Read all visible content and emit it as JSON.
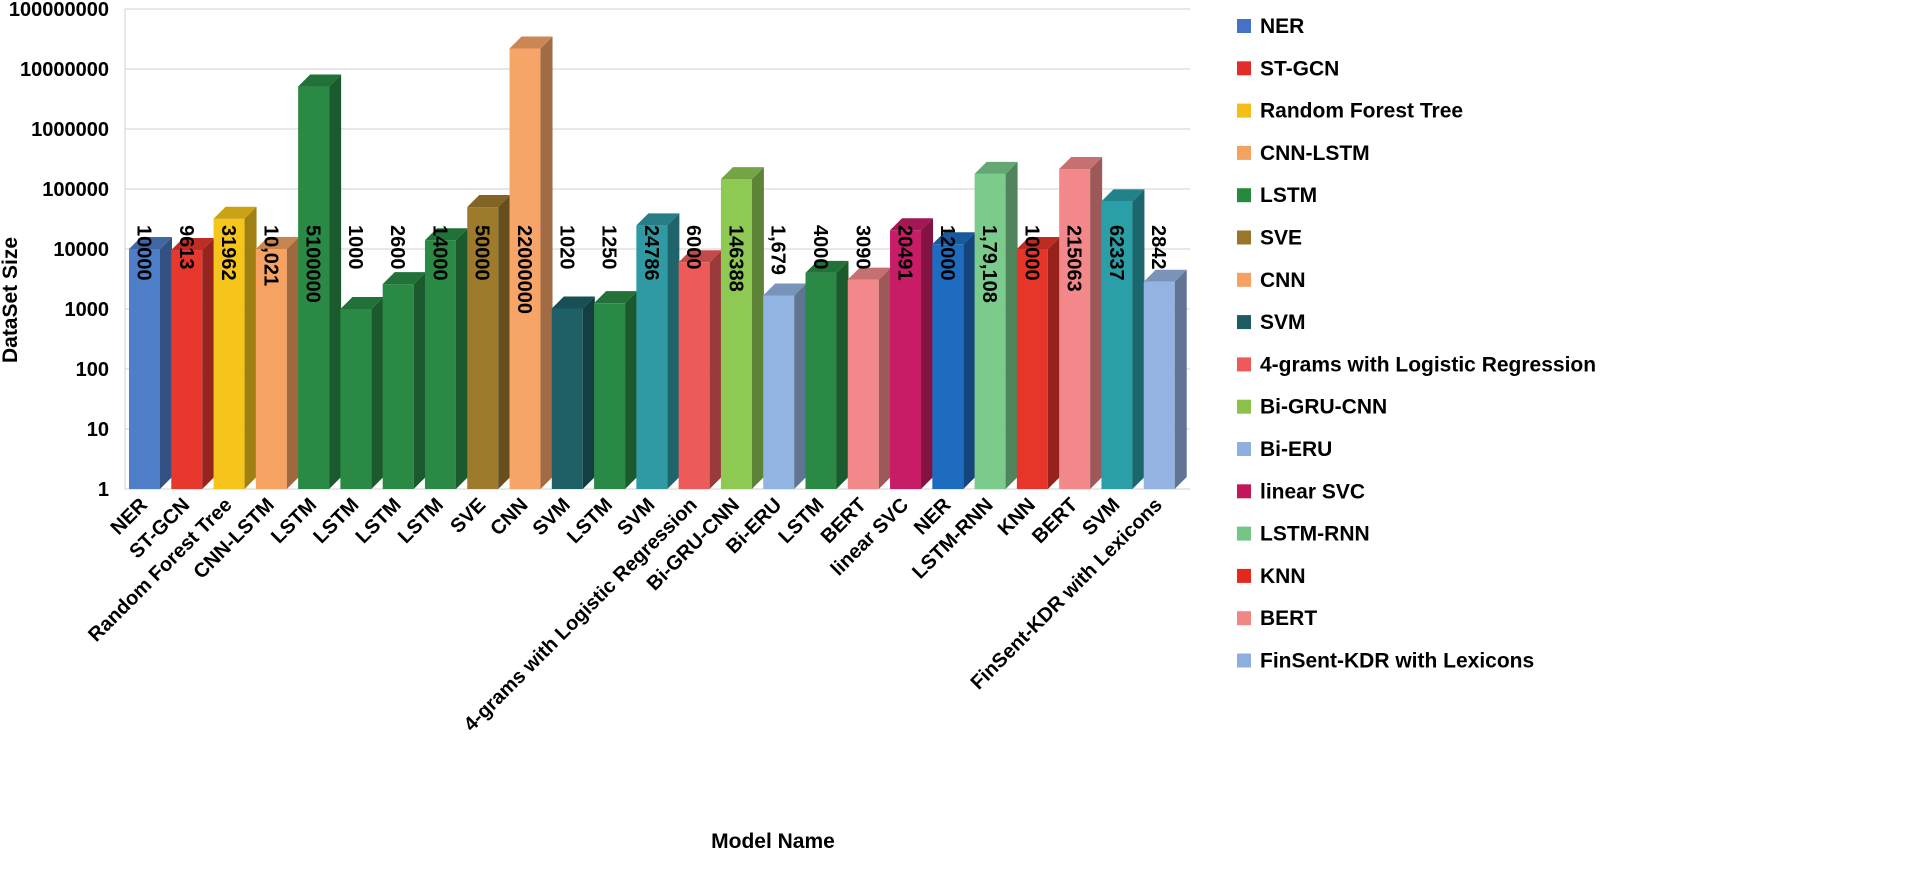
{
  "chart_data": {
    "type": "bar",
    "title": "",
    "xlabel": "Model Name",
    "ylabel": "DataSet Size",
    "yscale": "log",
    "ylim": [
      1,
      100000000
    ],
    "yticks": [
      "1",
      "10",
      "100",
      "1000",
      "10000",
      "100000",
      "1000000",
      "10000000",
      "100000000"
    ],
    "grid": true,
    "legend_position": "right",
    "categories": [
      "NER",
      "ST-GCN",
      "Random Forest Tree",
      "CNN-LSTM",
      "LSTM",
      "LSTM",
      "LSTM",
      "LSTM",
      "SVE",
      "CNN",
      "SVM",
      "LSTM",
      "SVM",
      "4-grams with Logistic Regression",
      "Bi-GRU-CNN",
      "Bi-ERU",
      "LSTM",
      "BERT",
      "linear SVC",
      "NER",
      "LSTM-RNN",
      "KNN",
      "BERT",
      "SVM",
      "FinSent-KDR with Lexicons"
    ],
    "values": [
      10000,
      9613,
      31962,
      10021,
      5100000,
      1000,
      2600,
      14000,
      50000,
      22000000,
      1020,
      1250,
      24786,
      6000,
      146388,
      1679,
      4000,
      3090,
      20491,
      12000,
      179108,
      10000,
      215063,
      62337,
      2842
    ],
    "value_labels": [
      "10000",
      "9613",
      "31962",
      "10,021",
      "5100000",
      "1000",
      "2600",
      "14000",
      "50000",
      "22000000",
      "1020",
      "1250",
      "24786",
      "6000",
      "146388",
      "1,679",
      "4000",
      "3090",
      "20491",
      "12000",
      "1,79,108",
      "10000",
      "215063",
      "62337",
      "2842"
    ],
    "colors": [
      "#4f7ec9",
      "#e8382e",
      "#f5c51b",
      "#f5a262",
      "#2a8a45",
      "#2a8a45",
      "#2a8a45",
      "#2a8a45",
      "#9e7a2d",
      "#f7a469",
      "#1f6066",
      "#2a8a45",
      "#2f9aa3",
      "#ec5a5a",
      "#8dc953",
      "#92b4e2",
      "#2a8a45",
      "#f2888a",
      "#c81c66",
      "#1e6cc0",
      "#7bcc8c",
      "#e8352a",
      "#f2888a",
      "#2a9fa8",
      "#94b3e2"
    ],
    "legend": [
      {
        "label": "NER",
        "color": "#4472c4"
      },
      {
        "label": "ST-GCN",
        "color": "#e32d28"
      },
      {
        "label": "Random Forest Tree",
        "color": "#f5be16"
      },
      {
        "label": "CNN-LSTM",
        "color": "#f4a260"
      },
      {
        "label": "LSTM",
        "color": "#248a3e"
      },
      {
        "label": "SVE",
        "color": "#9a762a"
      },
      {
        "label": "CNN",
        "color": "#f7a061"
      },
      {
        "label": "SVM",
        "color": "#1c5c62"
      },
      {
        "label": "4-grams with Logistic Regression",
        "color": "#ec5a5a"
      },
      {
        "label": "Bi-GRU-CNN",
        "color": "#8bc34a"
      },
      {
        "label": "Bi-ERU",
        "color": "#8eafe0"
      },
      {
        "label": "linear SVC",
        "color": "#c2185b"
      },
      {
        "label": "LSTM-RNN",
        "color": "#73c685"
      },
      {
        "label": "KNN",
        "color": "#e3281e"
      },
      {
        "label": "BERT",
        "color": "#f18685"
      },
      {
        "label": "FinSent-KDR with Lexicons",
        "color": "#8eaee0"
      }
    ]
  }
}
